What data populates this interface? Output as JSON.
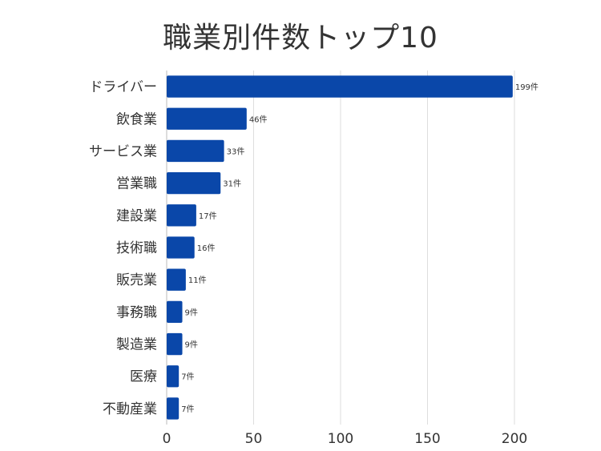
{
  "chart_data": {
    "type": "bar",
    "orientation": "horizontal",
    "title": "職業別件数トップ10",
    "categories": [
      "ドライバー",
      "飲食業",
      "サービス業",
      "営業職",
      "建設業",
      "技術職",
      "販売業",
      "事務職",
      "製造業",
      "医療",
      "不動産業"
    ],
    "values": [
      199,
      46,
      33,
      31,
      17,
      16,
      11,
      9,
      9,
      7,
      7
    ],
    "data_labels": [
      "199件",
      "46件",
      "33件",
      "31件",
      "17件",
      "16件",
      "11件",
      "9件",
      "9件",
      "7件",
      "7件"
    ],
    "x_ticks": [
      "0",
      "50",
      "100",
      "150",
      "200"
    ],
    "xlim": [
      0,
      200
    ],
    "grid": true,
    "bar_color": "#0a47a9",
    "xlabel": "",
    "ylabel": ""
  }
}
